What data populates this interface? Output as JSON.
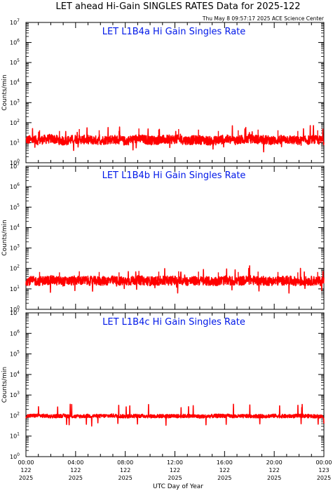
{
  "title": "LET ahead Hi-Gain SINGLES RATES Data for 2025-122",
  "timestamp": "Thu May  8 09:57:17 2025 ACE Science Center",
  "xlabel": "UTC Day of Year",
  "x_ticks": [
    {
      "time": "00:00",
      "day": "122",
      "year": "2025"
    },
    {
      "time": "04:00",
      "day": "122",
      "year": "2025"
    },
    {
      "time": "08:00",
      "day": "122",
      "year": "2025"
    },
    {
      "time": "12:00",
      "day": "122",
      "year": "2025"
    },
    {
      "time": "16:00",
      "day": "122",
      "year": "2025"
    },
    {
      "time": "20:00",
      "day": "122",
      "year": "2025"
    },
    {
      "time": "00:00",
      "day": "123",
      "year": "2025"
    }
  ],
  "colors": {
    "trace": "#ff0000",
    "panel_title": "#0018e8",
    "axes": "#000000"
  },
  "chart_data": [
    {
      "type": "line",
      "title": "LET L1B4a Hi Gain Singles Rate",
      "ylabel": "Counts/min",
      "yscale": "log",
      "ylim": [
        1,
        10000000
      ],
      "y_ticks": [
        "10",
        "10",
        "10",
        "10",
        "10",
        "10",
        "10",
        "10"
      ],
      "y_tick_exponents": [
        "0",
        "1",
        "2",
        "3",
        "4",
        "5",
        "6",
        "7"
      ],
      "xlim_hours": [
        0,
        24
      ],
      "series": [
        {
          "color": "#ff0000",
          "x": [
            0,
            1,
            2,
            3,
            4,
            5,
            6,
            7,
            8,
            9,
            10,
            11,
            12,
            13,
            14,
            15,
            16,
            17,
            18,
            19,
            20,
            21,
            22,
            23,
            24
          ],
          "y": [
            14,
            13,
            16,
            12,
            15,
            14,
            13,
            15,
            12,
            16,
            13,
            14,
            15,
            13,
            14,
            12,
            15,
            13,
            16,
            14,
            13,
            15,
            12,
            14,
            13
          ]
        }
      ]
    },
    {
      "type": "line",
      "title": "LET L1B4b Hi Gain Singles Rate",
      "ylabel": "Counts/min",
      "yscale": "log",
      "ylim": [
        1,
        10000000
      ],
      "y_ticks": [
        "10",
        "10",
        "10",
        "10",
        "10",
        "10",
        "10",
        "10"
      ],
      "y_tick_exponents": [
        "0",
        "1",
        "2",
        "3",
        "4",
        "5",
        "6",
        "7"
      ],
      "xlim_hours": [
        0,
        24
      ],
      "series": [
        {
          "color": "#ff0000",
          "x": [
            0,
            1,
            2,
            3,
            4,
            5,
            6,
            7,
            8,
            9,
            10,
            11,
            12,
            13,
            14,
            15,
            16,
            17,
            18,
            19,
            20,
            21,
            22,
            23,
            24
          ],
          "y": [
            25,
            24,
            27,
            23,
            26,
            25,
            24,
            26,
            23,
            27,
            24,
            25,
            26,
            24,
            25,
            23,
            26,
            24,
            27,
            25,
            24,
            26,
            23,
            25,
            24
          ]
        }
      ]
    },
    {
      "type": "line",
      "title": "LET L1B4c Hi Gain Singles Rate",
      "ylabel": "Counts/min",
      "yscale": "log",
      "ylim": [
        1,
        10000000
      ],
      "y_ticks": [
        "10",
        "10",
        "10",
        "10",
        "10",
        "10",
        "10",
        "10"
      ],
      "y_tick_exponents": [
        "0",
        "1",
        "2",
        "3",
        "4",
        "5",
        "6",
        "7"
      ],
      "xlim_hours": [
        0,
        24
      ],
      "series": [
        {
          "color": "#ff0000",
          "x": [
            0,
            1,
            2,
            3,
            4,
            5,
            6,
            7,
            8,
            9,
            10,
            11,
            12,
            13,
            14,
            15,
            16,
            17,
            18,
            19,
            20,
            21,
            22,
            23,
            24
          ],
          "y": [
            95,
            100,
            92,
            98,
            90,
            96,
            94,
            99,
            91,
            97,
            93,
            95,
            92,
            96,
            90,
            94,
            98,
            91,
            95,
            93,
            97,
            92,
            96,
            94,
            90
          ]
        }
      ]
    }
  ]
}
